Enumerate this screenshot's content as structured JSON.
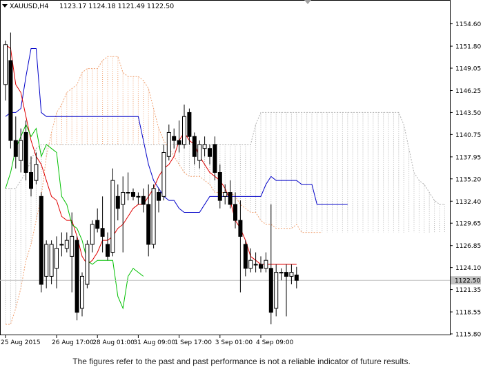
{
  "header": {
    "symbol_timeframe": "XAUUSD,H4",
    "ohlc": "1123.17 1124.18 1121.49 1122.50"
  },
  "disclaimer": "The figures refer to the past and past performance is not a reliable indicator of future results.",
  "colors": {
    "tenkan": "#e00000",
    "kijun": "#0000c8",
    "chikou": "#00c000",
    "senkou_a": "#f0a070",
    "senkou_b": "#b0b0b0",
    "candle": "#000000",
    "bid_line": "#c0c0c0"
  },
  "chart_data": {
    "type": "candlestick",
    "instrument": "XAUUSD",
    "timeframe": "H4",
    "ylim": [
      1115.8,
      1156.2
    ],
    "y_ticks": [
      "1154.60",
      "1151.80",
      "1149.05",
      "1146.25",
      "1143.50",
      "1140.75",
      "1137.95",
      "1135.20",
      "1132.40",
      "1129.65",
      "1126.85",
      "1124.10",
      "1121.35",
      "1118.55",
      "1115.80"
    ],
    "current_price": "1122.50",
    "x_ticks": [
      {
        "label": "25 Aug 2015",
        "bar": 0
      },
      {
        "label": "26 Aug 17:00",
        "bar": 10
      },
      {
        "label": "28 Aug 01:00",
        "bar": 18
      },
      {
        "label": "31 Aug 09:00",
        "bar": 26
      },
      {
        "label": "1 Sep 17:00",
        "bar": 34
      },
      {
        "label": "3 Sep 01:00",
        "bar": 42
      },
      {
        "label": "4 Sep 09:00",
        "bar": 50
      }
    ],
    "candles": [
      {
        "o": 1147.0,
        "h": 1152.5,
        "l": 1145.0,
        "c": 1152.0
      },
      {
        "o": 1150.0,
        "h": 1153.5,
        "l": 1139.0,
        "c": 1140.0
      },
      {
        "o": 1140.0,
        "h": 1143.0,
        "l": 1136.5,
        "c": 1138.0
      },
      {
        "o": 1137.5,
        "h": 1141.5,
        "l": 1136.0,
        "c": 1140.0
      },
      {
        "o": 1141.0,
        "h": 1142.5,
        "l": 1135.0,
        "c": 1136.0
      },
      {
        "o": 1136.0,
        "h": 1138.0,
        "l": 1133.0,
        "c": 1134.0
      },
      {
        "o": 1135.0,
        "h": 1138.5,
        "l": 1134.5,
        "c": 1137.0
      },
      {
        "o": 1133.0,
        "h": 1133.5,
        "l": 1121.0,
        "c": 1122.0
      },
      {
        "o": 1123.0,
        "h": 1127.5,
        "l": 1121.5,
        "c": 1127.0
      },
      {
        "o": 1123.0,
        "h": 1127.5,
        "l": 1122.0,
        "c": 1127.0
      },
      {
        "o": 1124.0,
        "h": 1128.0,
        "l": 1121.5,
        "c": 1126.5
      },
      {
        "o": 1127.0,
        "h": 1128.5,
        "l": 1125.5,
        "c": 1127.0
      },
      {
        "o": 1126.5,
        "h": 1128.5,
        "l": 1126.0,
        "c": 1127.5
      },
      {
        "o": 1125.5,
        "h": 1131.0,
        "l": 1121.0,
        "c": 1128.0
      },
      {
        "o": 1127.5,
        "h": 1128.0,
        "l": 1117.5,
        "c": 1118.5
      },
      {
        "o": 1119.0,
        "h": 1123.5,
        "l": 1118.0,
        "c": 1123.0
      },
      {
        "o": 1122.0,
        "h": 1127.5,
        "l": 1121.5,
        "c": 1127.0
      },
      {
        "o": 1127.0,
        "h": 1130.0,
        "l": 1126.0,
        "c": 1129.5
      },
      {
        "o": 1130.0,
        "h": 1131.5,
        "l": 1128.5,
        "c": 1129.0
      },
      {
        "o": 1129.0,
        "h": 1133.0,
        "l": 1126.0,
        "c": 1128.0
      },
      {
        "o": 1127.0,
        "h": 1128.5,
        "l": 1125.0,
        "c": 1125.5
      },
      {
        "o": 1126.0,
        "h": 1136.5,
        "l": 1125.5,
        "c": 1135.0
      },
      {
        "o": 1133.0,
        "h": 1134.5,
        "l": 1130.0,
        "c": 1131.5
      },
      {
        "o": 1132.0,
        "h": 1135.5,
        "l": 1126.0,
        "c": 1133.5
      },
      {
        "o": 1133.5,
        "h": 1136.0,
        "l": 1132.5,
        "c": 1133.5
      },
      {
        "o": 1133.5,
        "h": 1134.0,
        "l": 1132.5,
        "c": 1133.0
      },
      {
        "o": 1133.0,
        "h": 1133.5,
        "l": 1132.0,
        "c": 1133.0
      },
      {
        "o": 1133.0,
        "h": 1134.0,
        "l": 1131.0,
        "c": 1132.0
      },
      {
        "o": 1132.0,
        "h": 1134.5,
        "l": 1125.5,
        "c": 1127.0
      },
      {
        "o": 1127.0,
        "h": 1134.5,
        "l": 1126.5,
        "c": 1134.0
      },
      {
        "o": 1133.5,
        "h": 1134.0,
        "l": 1131.0,
        "c": 1132.5
      },
      {
        "o": 1133.0,
        "h": 1139.5,
        "l": 1132.5,
        "c": 1138.5
      },
      {
        "o": 1138.0,
        "h": 1142.0,
        "l": 1137.5,
        "c": 1141.0
      },
      {
        "o": 1140.5,
        "h": 1141.5,
        "l": 1139.0,
        "c": 1140.0
      },
      {
        "o": 1140.0,
        "h": 1142.5,
        "l": 1138.5,
        "c": 1139.5
      },
      {
        "o": 1139.5,
        "h": 1144.5,
        "l": 1139.0,
        "c": 1143.0
      },
      {
        "o": 1143.5,
        "h": 1144.0,
        "l": 1139.5,
        "c": 1140.5
      },
      {
        "o": 1140.5,
        "h": 1141.0,
        "l": 1137.0,
        "c": 1138.0
      },
      {
        "o": 1137.5,
        "h": 1140.0,
        "l": 1136.5,
        "c": 1139.5
      },
      {
        "o": 1139.0,
        "h": 1140.5,
        "l": 1138.0,
        "c": 1139.5
      },
      {
        "o": 1139.0,
        "h": 1139.5,
        "l": 1137.0,
        "c": 1138.0
      },
      {
        "o": 1139.5,
        "h": 1140.5,
        "l": 1135.0,
        "c": 1136.0
      },
      {
        "o": 1136.0,
        "h": 1137.0,
        "l": 1131.5,
        "c": 1132.5
      },
      {
        "o": 1133.0,
        "h": 1134.5,
        "l": 1132.0,
        "c": 1133.5
      },
      {
        "o": 1133.5,
        "h": 1135.0,
        "l": 1131.5,
        "c": 1132.0
      },
      {
        "o": 1132.0,
        "h": 1133.5,
        "l": 1129.0,
        "c": 1130.0
      },
      {
        "o": 1130.0,
        "h": 1132.5,
        "l": 1121.0,
        "c": 1128.0
      },
      {
        "o": 1127.0,
        "h": 1127.5,
        "l": 1123.0,
        "c": 1124.0
      },
      {
        "o": 1124.0,
        "h": 1126.5,
        "l": 1123.5,
        "c": 1125.0
      },
      {
        "o": 1124.5,
        "h": 1126.0,
        "l": 1123.5,
        "c": 1124.5
      },
      {
        "o": 1124.5,
        "h": 1125.5,
        "l": 1123.5,
        "c": 1124.0
      },
      {
        "o": 1124.0,
        "h": 1126.0,
        "l": 1123.5,
        "c": 1125.0
      },
      {
        "o": 1124.0,
        "h": 1132.0,
        "l": 1117.0,
        "c": 1118.5
      },
      {
        "o": 1119.0,
        "h": 1124.5,
        "l": 1118.0,
        "c": 1123.5
      },
      {
        "o": 1123.5,
        "h": 1124.0,
        "l": 1122.5,
        "c": 1123.5
      },
      {
        "o": 1123.5,
        "h": 1124.5,
        "l": 1118.0,
        "c": 1123.0
      },
      {
        "o": 1123.0,
        "h": 1124.5,
        "l": 1122.0,
        "c": 1123.5
      },
      {
        "o": 1123.17,
        "h": 1124.18,
        "l": 1121.49,
        "c": 1122.5
      }
    ],
    "series": [
      {
        "name": "tenkan",
        "start": 0,
        "values": [
          1152,
          1151.5,
          1147,
          1146,
          1143,
          1140,
          1138,
          1137,
          1135,
          1133,
          1132.5,
          1130.5,
          1130,
          1130,
          1128,
          1125.5,
          1124.5,
          1125,
          1126,
          1127.5,
          1127.5,
          1128,
          1129,
          1129.5,
          1130.5,
          1131.5,
          1132,
          1132,
          1133,
          1134,
          1135.5,
          1136.5,
          1137,
          1138,
          1140,
          1141,
          1140,
          1139.5,
          1138,
          1137,
          1136,
          1135.5,
          1135,
          1134,
          1132.5,
          1130,
          1129,
          1127.5,
          1125.5,
          1125,
          1124.5,
          1124.5,
          1124.5,
          1124.5,
          1124.5,
          1124.5,
          1124.5,
          1124.5
        ]
      },
      {
        "name": "kijun",
        "start": 0,
        "values": [
          1143,
          1143.5,
          1143.5,
          1144,
          1148,
          1151.5,
          1151.5,
          1143.5,
          1143,
          1143,
          1143,
          1143,
          1143,
          1143,
          1143,
          1143,
          1143,
          1143,
          1143,
          1143,
          1143,
          1143,
          1143,
          1143,
          1143,
          1143,
          1143,
          1140,
          1137,
          1135,
          1134,
          1133,
          1132.5,
          1132.5,
          1131.5,
          1131,
          1131,
          1131,
          1131,
          1132,
          1133,
          1133,
          1133,
          1133,
          1133,
          1133,
          1133,
          1133,
          1133,
          1133,
          1133,
          1134.5,
          1135.5,
          1135,
          1135,
          1135,
          1135,
          1135,
          1134.5,
          1134.5,
          1134.5,
          1132,
          1132,
          1132,
          1132,
          1132,
          1132,
          1132
        ]
      },
      {
        "name": "chikou",
        "start": 0,
        "values": [
          1134,
          1136,
          1139,
          1140.5,
          1142,
          1140.5,
          1141.5,
          1138,
          1139.5,
          1139,
          1138.5,
          1133,
          1132,
          1129.5,
          1129,
          1127.5,
          1125,
          1124.5,
          1125,
          1125,
          1125,
          1125,
          1120.5,
          1119,
          1123,
          1124,
          1123.5,
          1123
        ]
      },
      {
        "name": "senkou_a",
        "start": 0,
        "values": [
          1117,
          1117,
          1119,
          1121.5,
          1125,
          1127,
          1130,
          1133,
          1138,
          1141,
          1143.5,
          1144.5,
          1146,
          1146.5,
          1147,
          1148.5,
          1149,
          1149,
          1149,
          1150,
          1150.5,
          1150.5,
          1150.5,
          1148.5,
          1148,
          1148,
          1148,
          1147.5,
          1146.5,
          1144,
          1141.5,
          1140,
          1139,
          1138,
          1137,
          1136,
          1135.5,
          1135.5,
          1135.5,
          1135,
          1134.5,
          1133.5,
          1133.5,
          1133.5,
          1133.5,
          1133,
          1132,
          1131.5,
          1131,
          1131,
          1130,
          1129.5,
          1129.5,
          1129,
          1129,
          1129,
          1129,
          1129.5,
          1128.5,
          1128.5,
          1128.5,
          1128.5,
          1128.5
        ]
      },
      {
        "name": "senkou_b",
        "start": 0,
        "values": [
          1134,
          1134,
          1134,
          1135,
          1136,
          1137.5,
          1139,
          1139.5,
          1139.5,
          1139.5,
          1139.5,
          1139.5,
          1139.5,
          1139.5,
          1139.5,
          1139.5,
          1139.5,
          1139.5,
          1139.5,
          1139.5,
          1139.5,
          1139.5,
          1139.5,
          1139.5,
          1139.5,
          1139.5,
          1139.5,
          1139.5,
          1139.5,
          1139.5,
          1139.5,
          1139.5,
          1139.5,
          1139.5,
          1139.5,
          1139.5,
          1139.5,
          1139.5,
          1139.5,
          1139.5,
          1139.5,
          1139.5,
          1139.5,
          1139.5,
          1139.5,
          1139.5,
          1139.5,
          1139.5,
          1139.5,
          1142,
          1143.5,
          1143.5,
          1143.5,
          1143.5,
          1143.5,
          1143.5,
          1143.5,
          1143.5,
          1143.5,
          1143.5,
          1143.5,
          1143.5,
          1143.5,
          1143.5,
          1143.5,
          1143.5,
          1143.5,
          1143.5,
          1143.5,
          1143.5,
          1143.5,
          1143.5,
          1143.5,
          1143.5,
          1143.5,
          1143.5,
          1143.5,
          1143.5,
          1142,
          1139,
          1136,
          1135,
          1134.5,
          1133.5,
          1132.5,
          1132,
          1132
        ]
      }
    ]
  }
}
